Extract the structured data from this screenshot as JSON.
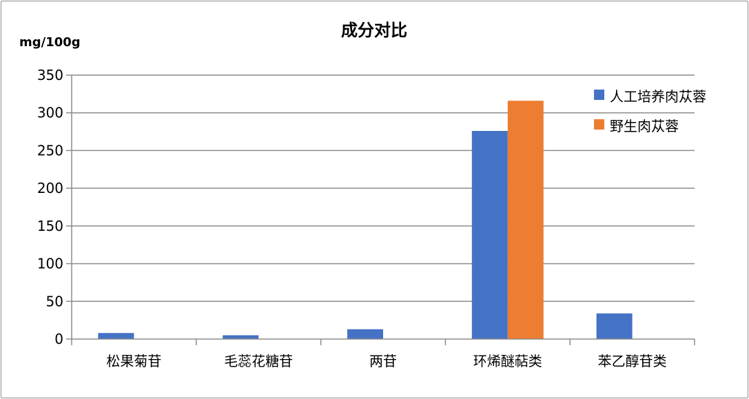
{
  "chart_data": {
    "type": "bar",
    "title": "成分对比",
    "ylabel": "mg/100g",
    "ylim": [
      0,
      350
    ],
    "yticks": [
      0,
      50,
      100,
      150,
      200,
      250,
      300,
      350
    ],
    "grid": true,
    "legend_position": "right",
    "categories": [
      "松果菊苷",
      "毛蕊花糖苷",
      "两苷",
      "环烯醚萜类",
      "苯乙醇苷类"
    ],
    "series": [
      {
        "name": "人工培养肉苁蓉",
        "color": "#4472C4",
        "values": [
          8,
          5,
          13,
          276,
          34
        ]
      },
      {
        "name": "野生肉苁蓉",
        "color": "#ED7D31",
        "values": [
          0,
          0,
          0,
          316,
          0
        ]
      }
    ]
  }
}
